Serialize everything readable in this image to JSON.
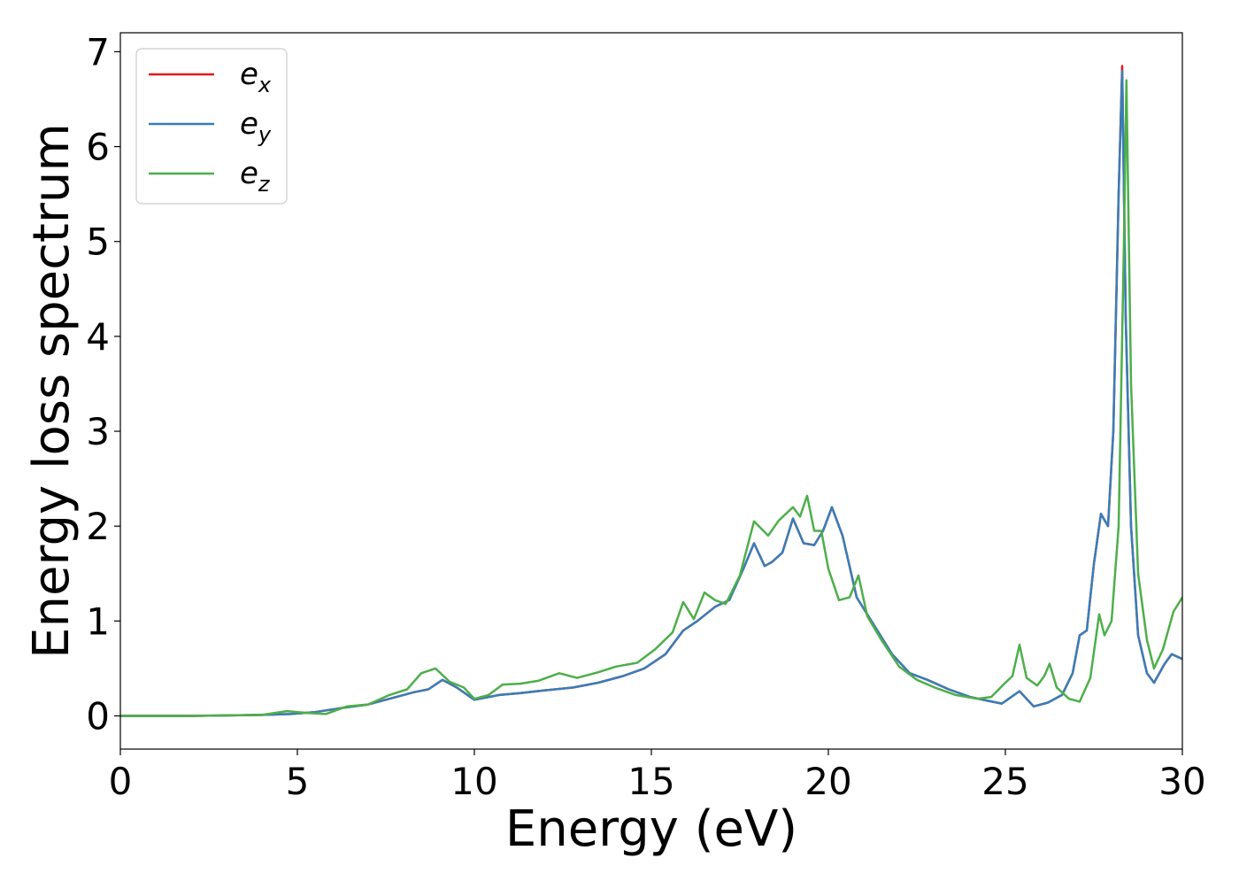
{
  "chart_data": {
    "type": "line",
    "title": "",
    "xlabel": "Energy (eV)",
    "ylabel": "Energy loss spectrum",
    "xlim": [
      0,
      30
    ],
    "ylim": [
      -0.35,
      7.2
    ],
    "xticks": [
      0,
      5,
      10,
      15,
      20,
      25,
      30
    ],
    "yticks": [
      0,
      1,
      2,
      3,
      4,
      5,
      6,
      7
    ],
    "grid": false,
    "legend_position": "top-left",
    "series": [
      {
        "name": "e_x",
        "color": "#e41a1c",
        "x": [
          0,
          2,
          4,
          4.8,
          5.5,
          6.2,
          7.0,
          7.8,
          8.3,
          8.7,
          9.1,
          9.5,
          10.0,
          10.7,
          11.3,
          12.0,
          12.8,
          13.5,
          14.2,
          14.8,
          15.4,
          15.9,
          16.3,
          16.8,
          17.2,
          17.6,
          17.9,
          18.2,
          18.4,
          18.7,
          19.0,
          19.3,
          19.6,
          19.85,
          20.1,
          20.4,
          20.8,
          21.3,
          21.8,
          22.3,
          22.8,
          23.4,
          24.0,
          24.5,
          24.9,
          25.4,
          25.8,
          26.2,
          26.6,
          26.9,
          27.1,
          27.3,
          27.5,
          27.7,
          27.9,
          28.05,
          28.2,
          28.3,
          28.4,
          28.55,
          28.75,
          29.0,
          29.2,
          29.5,
          29.7,
          30.0
        ],
        "y": [
          0,
          0,
          0.01,
          0.02,
          0.04,
          0.08,
          0.12,
          0.2,
          0.25,
          0.28,
          0.38,
          0.3,
          0.17,
          0.22,
          0.24,
          0.27,
          0.3,
          0.35,
          0.42,
          0.5,
          0.65,
          0.9,
          1.0,
          1.15,
          1.22,
          1.55,
          1.82,
          1.58,
          1.62,
          1.72,
          2.08,
          1.82,
          1.8,
          1.95,
          2.2,
          1.9,
          1.25,
          0.95,
          0.65,
          0.45,
          0.38,
          0.28,
          0.2,
          0.16,
          0.13,
          0.26,
          0.1,
          0.14,
          0.22,
          0.45,
          0.85,
          0.9,
          1.6,
          2.13,
          2.0,
          3.0,
          5.5,
          6.85,
          4.2,
          2.0,
          0.85,
          0.45,
          0.35,
          0.55,
          0.65,
          0.6
        ]
      },
      {
        "name": "e_y",
        "color": "#377eb8",
        "x": [
          0,
          2,
          4,
          4.8,
          5.5,
          6.2,
          7.0,
          7.8,
          8.3,
          8.7,
          9.1,
          9.5,
          10.0,
          10.7,
          11.3,
          12.0,
          12.8,
          13.5,
          14.2,
          14.8,
          15.4,
          15.9,
          16.3,
          16.8,
          17.2,
          17.6,
          17.9,
          18.2,
          18.4,
          18.7,
          19.0,
          19.3,
          19.6,
          19.85,
          20.1,
          20.4,
          20.8,
          21.3,
          21.8,
          22.3,
          22.8,
          23.4,
          24.0,
          24.5,
          24.9,
          25.4,
          25.8,
          26.2,
          26.6,
          26.9,
          27.1,
          27.3,
          27.5,
          27.7,
          27.9,
          28.05,
          28.2,
          28.3,
          28.4,
          28.55,
          28.75,
          29.0,
          29.2,
          29.5,
          29.7,
          30.0
        ],
        "y": [
          0,
          0,
          0.01,
          0.02,
          0.04,
          0.08,
          0.12,
          0.2,
          0.25,
          0.28,
          0.38,
          0.3,
          0.17,
          0.22,
          0.24,
          0.27,
          0.3,
          0.35,
          0.42,
          0.5,
          0.65,
          0.9,
          1.0,
          1.15,
          1.22,
          1.55,
          1.82,
          1.58,
          1.62,
          1.72,
          2.08,
          1.82,
          1.8,
          1.95,
          2.2,
          1.9,
          1.25,
          0.95,
          0.65,
          0.45,
          0.38,
          0.28,
          0.2,
          0.16,
          0.13,
          0.26,
          0.1,
          0.14,
          0.22,
          0.45,
          0.85,
          0.9,
          1.6,
          2.13,
          2.0,
          3.0,
          5.5,
          6.8,
          4.2,
          2.0,
          0.85,
          0.45,
          0.35,
          0.55,
          0.65,
          0.6
        ]
      },
      {
        "name": "e_z",
        "color": "#4daf4a",
        "x": [
          0,
          2,
          4,
          4.7,
          5.3,
          5.8,
          6.4,
          7.0,
          7.6,
          8.1,
          8.5,
          8.9,
          9.3,
          9.7,
          10.0,
          10.4,
          10.8,
          11.3,
          11.8,
          12.4,
          12.9,
          13.5,
          14.0,
          14.6,
          15.1,
          15.6,
          15.9,
          16.2,
          16.5,
          16.8,
          17.1,
          17.5,
          17.9,
          18.3,
          18.6,
          19.0,
          19.2,
          19.4,
          19.6,
          19.8,
          20.0,
          20.3,
          20.6,
          20.85,
          21.1,
          21.5,
          22.0,
          22.5,
          23.0,
          23.6,
          24.2,
          24.6,
          25.0,
          25.2,
          25.4,
          25.6,
          25.9,
          26.1,
          26.25,
          26.45,
          26.8,
          27.1,
          27.4,
          27.65,
          27.8,
          28.0,
          28.2,
          28.35,
          28.42,
          28.55,
          28.75,
          29.0,
          29.2,
          29.45,
          29.75,
          30.0
        ],
        "y": [
          0,
          0,
          0.01,
          0.05,
          0.03,
          0.02,
          0.1,
          0.12,
          0.22,
          0.28,
          0.45,
          0.5,
          0.36,
          0.3,
          0.18,
          0.22,
          0.33,
          0.34,
          0.37,
          0.45,
          0.4,
          0.46,
          0.52,
          0.56,
          0.7,
          0.88,
          1.2,
          1.02,
          1.3,
          1.22,
          1.18,
          1.48,
          2.05,
          1.9,
          2.06,
          2.2,
          2.1,
          2.32,
          1.95,
          1.95,
          1.55,
          1.22,
          1.25,
          1.48,
          1.05,
          0.8,
          0.52,
          0.38,
          0.3,
          0.22,
          0.18,
          0.2,
          0.35,
          0.42,
          0.75,
          0.4,
          0.32,
          0.42,
          0.55,
          0.3,
          0.18,
          0.15,
          0.4,
          1.07,
          0.85,
          1.0,
          2.0,
          5.0,
          6.7,
          3.5,
          1.5,
          0.8,
          0.5,
          0.7,
          1.1,
          1.25
        ]
      }
    ]
  },
  "legend": {
    "entries": [
      {
        "base": "e",
        "sub": "x",
        "color": "#e41a1c"
      },
      {
        "base": "e",
        "sub": "y",
        "color": "#377eb8"
      },
      {
        "base": "e",
        "sub": "z",
        "color": "#4daf4a"
      }
    ]
  }
}
